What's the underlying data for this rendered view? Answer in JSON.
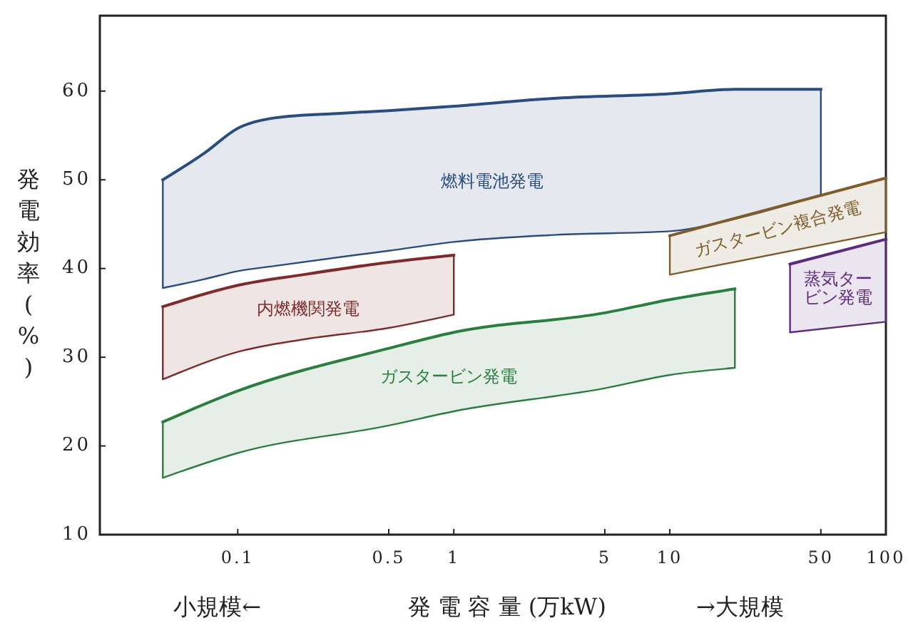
{
  "chart_data": {
    "type": "line",
    "log": "x",
    "xlabel": "発 電 容 量 (万kW)",
    "ylabel": "発電効率(%)",
    "annotations": [
      "小規模←",
      "→大規模"
    ],
    "xlim": [
      0.023,
      100
    ],
    "ylim": [
      10,
      68.5
    ],
    "xticks": [
      0.1,
      0.5,
      1,
      5,
      10,
      50,
      100
    ],
    "yticks": [
      10,
      20,
      30,
      40,
      50,
      60
    ],
    "grid": false,
    "marker": "none",
    "series": [
      {
        "name": "燃料電池発電",
        "color": "#2b4c7e",
        "x": [
          0.045,
          0.07,
          0.1,
          0.15,
          0.3,
          0.5,
          1,
          3,
          10,
          20,
          50
        ],
        "values": [
          50,
          53,
          55.8,
          57,
          57.5,
          57.8,
          58.3,
          59.2,
          59.7,
          60.2,
          60.2
        ],
        "upper": [
          50,
          53,
          55.8,
          57,
          57.5,
          57.8,
          58.3,
          59.2,
          59.7,
          60.2,
          60.2
        ],
        "lower": [
          37.8,
          38.8,
          39.7,
          40.3,
          41.3,
          42,
          43,
          43.8,
          44.2,
          45.6,
          48.3
        ]
      },
      {
        "name": "内燃機関発電",
        "color": "#7e2b2b",
        "x": [
          0.045,
          0.1,
          0.2,
          0.5,
          1
        ],
        "values": [
          35.7,
          38.1,
          39.3,
          40.7,
          41.5
        ],
        "upper": [
          35.7,
          38.1,
          39.3,
          40.7,
          41.5
        ],
        "lower": [
          27.5,
          30.6,
          32,
          33.3,
          34.8
        ]
      },
      {
        "name": "ガスタービン発電",
        "color": "#2b7e3f",
        "x": [
          0.045,
          0.1,
          0.5,
          1,
          5,
          10,
          20
        ],
        "values": [
          22.7,
          26.2,
          31,
          32.8,
          35,
          36.5,
          37.7
        ],
        "upper": [
          22.7,
          26.2,
          31,
          32.8,
          35,
          36.5,
          37.7
        ],
        "lower": [
          16.4,
          19.2,
          22.3,
          23.9,
          26.5,
          28,
          28.8
        ]
      },
      {
        "name": "ガスタービン複合発電",
        "color": "#7e5d2b",
        "x": [
          10,
          100
        ],
        "values": [
          43.7,
          50.2
        ],
        "upper": [
          43.7,
          50.2
        ],
        "lower": [
          39.3,
          44.1
        ]
      },
      {
        "name": "蒸気タービン発電",
        "color": "#5d2b7e",
        "x": [
          36,
          100
        ],
        "values": [
          40.5,
          43.3
        ],
        "upper": [
          40.5,
          43.3
        ],
        "lower": [
          32.8,
          34
        ]
      }
    ]
  }
}
